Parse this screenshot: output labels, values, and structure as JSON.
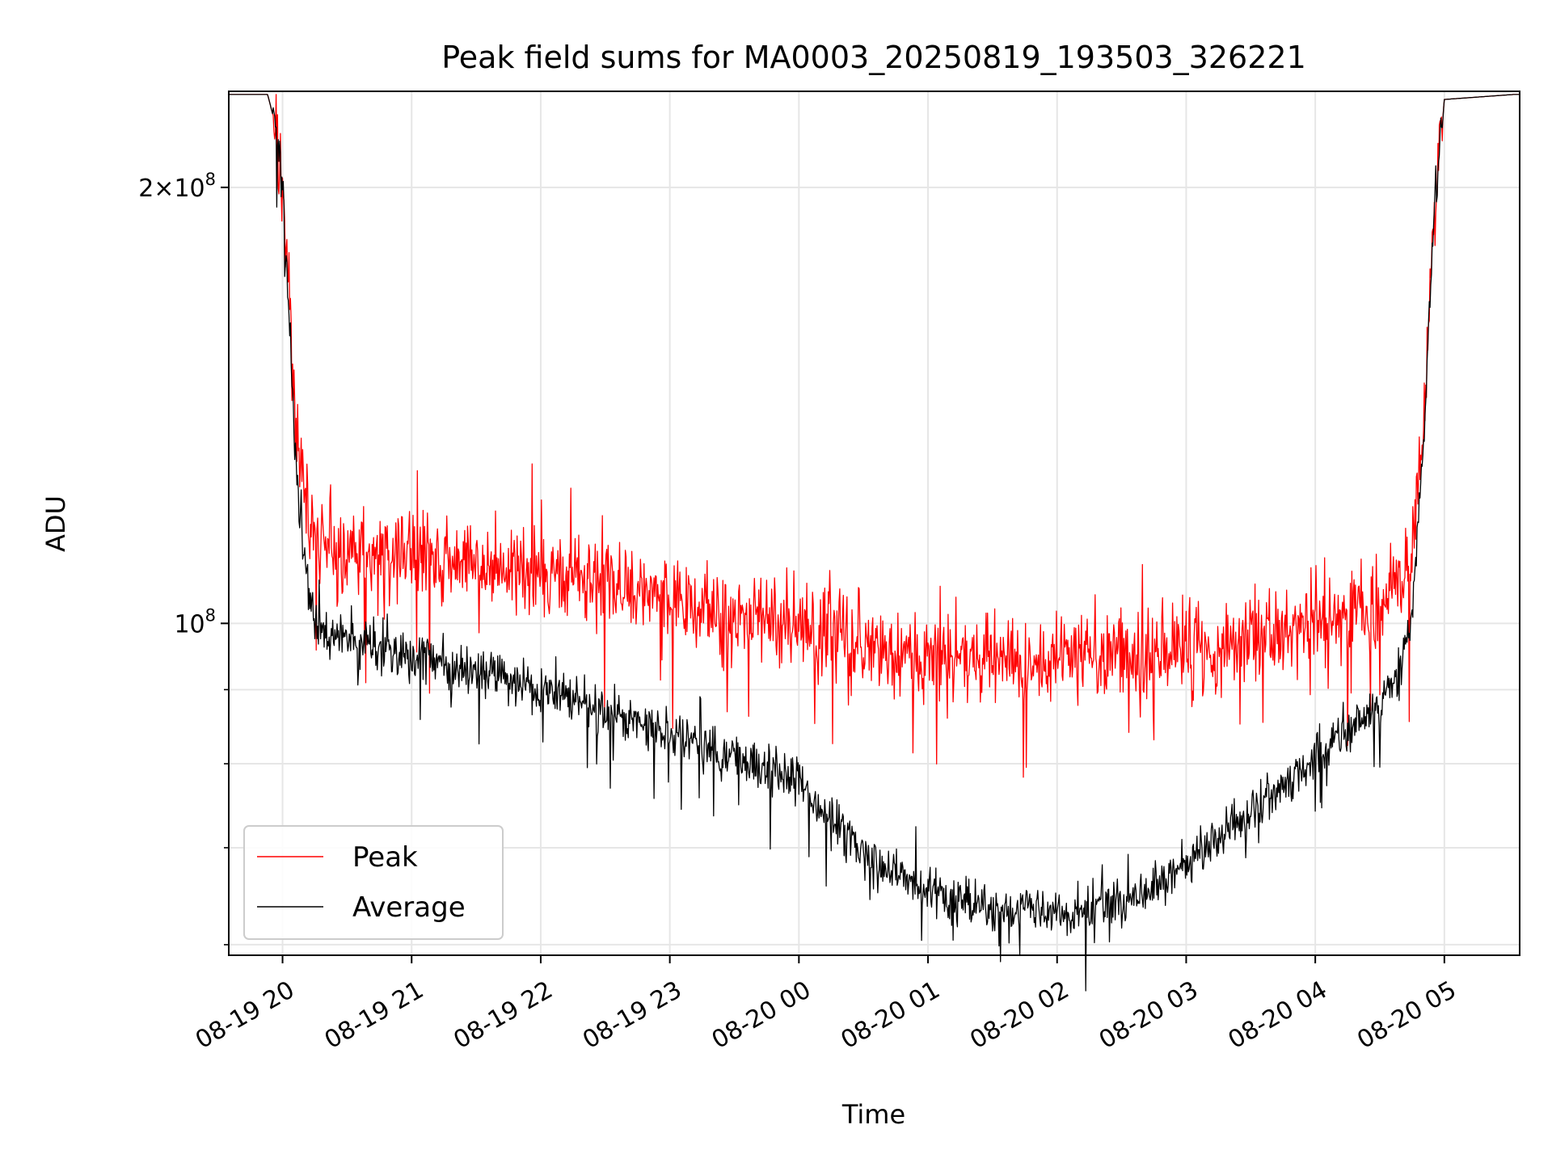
{
  "chart_data": {
    "type": "line",
    "title": "Peak field sums for MA0003_20250819_193503_326221",
    "xlabel": "Time",
    "ylabel": "ADU",
    "x_axis": {
      "kind": "datetime",
      "start": "2025-08-19 19:35",
      "end": "2025-08-20 05:35",
      "ticks": [
        {
          "t": "2025-08-19 20:00",
          "label": "08-19 20"
        },
        {
          "t": "2025-08-19 21:00",
          "label": "08-19 21"
        },
        {
          "t": "2025-08-19 22:00",
          "label": "08-19 22"
        },
        {
          "t": "2025-08-19 23:00",
          "label": "08-19 23"
        },
        {
          "t": "2025-08-20 00:00",
          "label": "08-20 00"
        },
        {
          "t": "2025-08-20 01:00",
          "label": "08-20 01"
        },
        {
          "t": "2025-08-20 02:00",
          "label": "08-20 02"
        },
        {
          "t": "2025-08-20 03:00",
          "label": "08-20 03"
        },
        {
          "t": "2025-08-20 04:00",
          "label": "08-20 04"
        },
        {
          "t": "2025-08-20 05:00",
          "label": "08-20 05"
        }
      ]
    },
    "y_axis": {
      "scale": "log",
      "range": [
        59000000,
        233000000
      ],
      "major_ticks": [
        {
          "v": 100000000,
          "mantissa": "",
          "exp": "8"
        },
        {
          "v": 200000000,
          "mantissa": "2×",
          "exp": "8"
        }
      ],
      "minor_ticks": [
        60000000,
        70000000,
        80000000,
        90000000
      ]
    },
    "grid": true,
    "legend": {
      "placement": "lower-left"
    },
    "series": [
      {
        "name": "Peak",
        "color": "#ff0000",
        "noise_level": 0.035,
        "points": [
          [
            "2025-08-19 19:35",
            232000000
          ],
          [
            "2025-08-19 19:53",
            232000000
          ],
          [
            "2025-08-19 19:57",
            220000000
          ],
          [
            "2025-08-19 20:00",
            200000000
          ],
          [
            "2025-08-19 20:03",
            170000000
          ],
          [
            "2025-08-19 20:06",
            140000000
          ],
          [
            "2025-08-19 20:10",
            122000000
          ],
          [
            "2025-08-19 20:15",
            114000000
          ],
          [
            "2025-08-19 20:30",
            112000000
          ],
          [
            "2025-08-19 21:00",
            111000000
          ],
          [
            "2025-08-19 21:30",
            110000000
          ],
          [
            "2025-08-19 22:00",
            108000000
          ],
          [
            "2025-08-19 22:30",
            107000000
          ],
          [
            "2025-08-19 23:00",
            104000000
          ],
          [
            "2025-08-19 23:30",
            101000000
          ],
          [
            "2025-08-20 00:00",
            100000000
          ],
          [
            "2025-08-20 00:30",
            97000000
          ],
          [
            "2025-08-20 01:00",
            95000000
          ],
          [
            "2025-08-20 01:30",
            94000000
          ],
          [
            "2025-08-20 02:00",
            94000000
          ],
          [
            "2025-08-20 02:30",
            95000000
          ],
          [
            "2025-08-20 03:00",
            96000000
          ],
          [
            "2025-08-20 03:30",
            98000000
          ],
          [
            "2025-08-20 04:00",
            100000000
          ],
          [
            "2025-08-20 04:30",
            103000000
          ],
          [
            "2025-08-20 04:40",
            106000000
          ],
          [
            "2025-08-20 04:45",
            112000000
          ],
          [
            "2025-08-20 04:50",
            135000000
          ],
          [
            "2025-08-20 04:53",
            165000000
          ],
          [
            "2025-08-20 04:56",
            200000000
          ],
          [
            "2025-08-20 05:00",
            230000000
          ],
          [
            "2025-08-20 05:35",
            232000000
          ]
        ]
      },
      {
        "name": "Average",
        "color": "#000000",
        "noise_level": 0.018,
        "points": [
          [
            "2025-08-19 19:35",
            232000000
          ],
          [
            "2025-08-19 19:53",
            232000000
          ],
          [
            "2025-08-19 19:57",
            220000000
          ],
          [
            "2025-08-19 20:00",
            200000000
          ],
          [
            "2025-08-19 20:03",
            165000000
          ],
          [
            "2025-08-19 20:06",
            130000000
          ],
          [
            "2025-08-19 20:10",
            110000000
          ],
          [
            "2025-08-19 20:15",
            100000000
          ],
          [
            "2025-08-19 20:30",
            97000000
          ],
          [
            "2025-08-19 21:00",
            95000000
          ],
          [
            "2025-08-19 21:30",
            93000000
          ],
          [
            "2025-08-19 22:00",
            90000000
          ],
          [
            "2025-08-19 22:30",
            87000000
          ],
          [
            "2025-08-19 23:00",
            84000000
          ],
          [
            "2025-08-19 23:30",
            81000000
          ],
          [
            "2025-08-20 00:00",
            78000000
          ],
          [
            "2025-08-20 00:30",
            69000000
          ],
          [
            "2025-08-20 01:00",
            65000000
          ],
          [
            "2025-08-20 01:30",
            63500000
          ],
          [
            "2025-08-20 02:00",
            63000000
          ],
          [
            "2025-08-20 02:30",
            64000000
          ],
          [
            "2025-08-20 03:00",
            68000000
          ],
          [
            "2025-08-20 03:30",
            74000000
          ],
          [
            "2025-08-20 04:00",
            81000000
          ],
          [
            "2025-08-20 04:30",
            88000000
          ],
          [
            "2025-08-20 04:40",
            93000000
          ],
          [
            "2025-08-20 04:45",
            102000000
          ],
          [
            "2025-08-20 04:50",
            130000000
          ],
          [
            "2025-08-20 04:53",
            165000000
          ],
          [
            "2025-08-20 04:56",
            200000000
          ],
          [
            "2025-08-20 05:00",
            230000000
          ],
          [
            "2025-08-20 05:35",
            232000000
          ]
        ]
      }
    ]
  }
}
